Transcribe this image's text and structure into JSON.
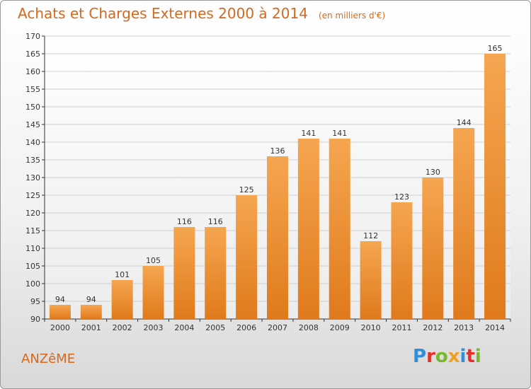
{
  "title": "Achats et Charges Externes 2000 à 2014",
  "unit_note": "(en milliers d'€)",
  "town": "ANZêME",
  "logo": "Proxiti",
  "colors": {
    "bar_top": "#f5a650",
    "bar_bottom": "#e07a1c",
    "accent": "#d2691e"
  },
  "chart_data": {
    "type": "bar",
    "title": "Achats et Charges Externes 2000 à 2014",
    "categories": [
      "2000",
      "2001",
      "2002",
      "2003",
      "2004",
      "2005",
      "2006",
      "2007",
      "2008",
      "2009",
      "2010",
      "2011",
      "2012",
      "2013",
      "2014"
    ],
    "values": [
      94,
      94,
      101,
      105,
      116,
      116,
      125,
      136,
      141,
      141,
      112,
      123,
      130,
      144,
      165
    ],
    "ylim": [
      90,
      170
    ],
    "yticks": [
      90,
      95,
      100,
      105,
      110,
      115,
      120,
      125,
      130,
      135,
      140,
      145,
      150,
      155,
      160,
      165,
      170
    ],
    "grid": true,
    "xlabel": "",
    "ylabel": ""
  }
}
